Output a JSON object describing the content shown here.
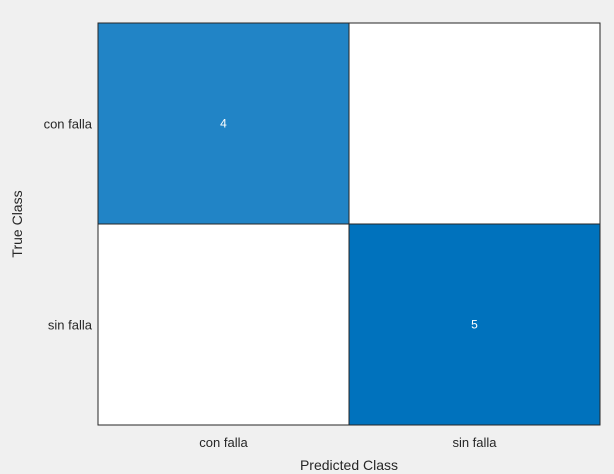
{
  "chart_data": {
    "type": "heatmap",
    "title": "",
    "xlabel": "Predicted Class",
    "ylabel": "True Class",
    "x_categories": [
      "con falla",
      "sin falla"
    ],
    "y_categories": [
      "con falla",
      "sin falla"
    ],
    "values": [
      [
        4,
        0
      ],
      [
        0,
        5
      ]
    ],
    "value_labels": [
      [
        "4",
        ""
      ],
      [
        "",
        "5"
      ]
    ],
    "grid": false,
    "legend": "none",
    "colors": {
      "high": "#0072bd",
      "low": "#ffffff",
      "cell_text": "#ffffff",
      "background": "#f0f0f0",
      "axis": "#262626"
    }
  }
}
